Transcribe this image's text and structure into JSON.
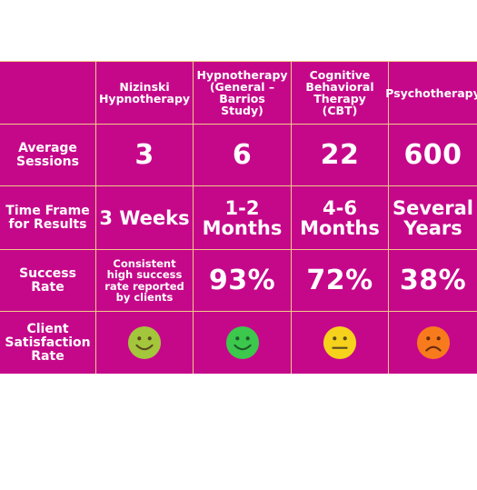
{
  "columns": [
    "",
    "Nizinski Hypnotherapy",
    "Hypnotherapy (General – Barrios Study)",
    "Cognitive Behavioral Therapy (CBT)",
    "Psychotherapy"
  ],
  "rows": [
    {
      "label": "Average Sessions",
      "values": [
        "3",
        "6",
        "22",
        "600"
      ]
    },
    {
      "label": "Time Frame for Results",
      "values": [
        "3 Weeks",
        "1-2 Months",
        "4-6 Months",
        "Several Years"
      ]
    },
    {
      "label": "Success Rate",
      "values": [
        "Consistent high success rate reported by clients",
        "93%",
        "72%",
        "38%"
      ]
    },
    {
      "label": "Client Satisfaction Rate",
      "faces": [
        {
          "icon": "smiley-face-icon",
          "color": "#a3c63c"
        },
        {
          "icon": "smiley-face-icon",
          "color": "#3cc74d"
        },
        {
          "icon": "neutral-face-icon",
          "color": "#f7d21c"
        },
        {
          "icon": "frowning-face-icon",
          "color": "#f77b1c"
        }
      ]
    }
  ],
  "colors": {
    "background": "#c5088a",
    "border": "#f0c98a",
    "text": "#ffffff"
  }
}
